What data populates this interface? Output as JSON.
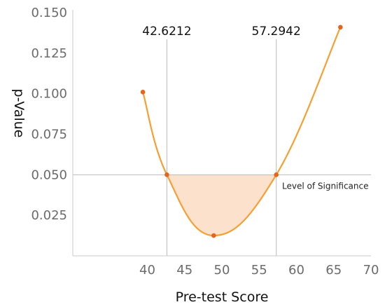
{
  "chart_data": {
    "type": "line",
    "xlabel": "Pre-test Score",
    "ylabel": "p-Value",
    "xlim": [
      30,
      70
    ],
    "ylim": [
      0,
      0.15
    ],
    "x_ticks": [
      "40",
      "45",
      "50",
      "55",
      "60",
      "65",
      "70"
    ],
    "y_ticks": [
      "0.150",
      "0.125",
      "0.100",
      "0.075",
      "0.050",
      "0.025"
    ],
    "y_tick_values": [
      0.15,
      0.125,
      0.1,
      0.075,
      0.05,
      0.025
    ],
    "highlight_y_tick": "0.050",
    "significance_level": 0.05,
    "significance_label": "Level of Significance",
    "markers": [
      {
        "x": 42.6212,
        "label": "42.6212"
      },
      {
        "x": 57.2942,
        "label": "57.2942"
      }
    ],
    "series": [
      {
        "x": [
          39.4,
          42.6212,
          48.9,
          57.2942,
          65.9
        ],
        "y": [
          0.101,
          0.05,
          0.0125,
          0.05,
          0.141
        ]
      }
    ],
    "colors": {
      "curve": "#F5A033",
      "point": "#E4661C",
      "fill": "#FCDCC3",
      "highlight_text": "#E4661C",
      "reference_line": "#BBBBBB",
      "axis": "#C8C8C8"
    }
  }
}
